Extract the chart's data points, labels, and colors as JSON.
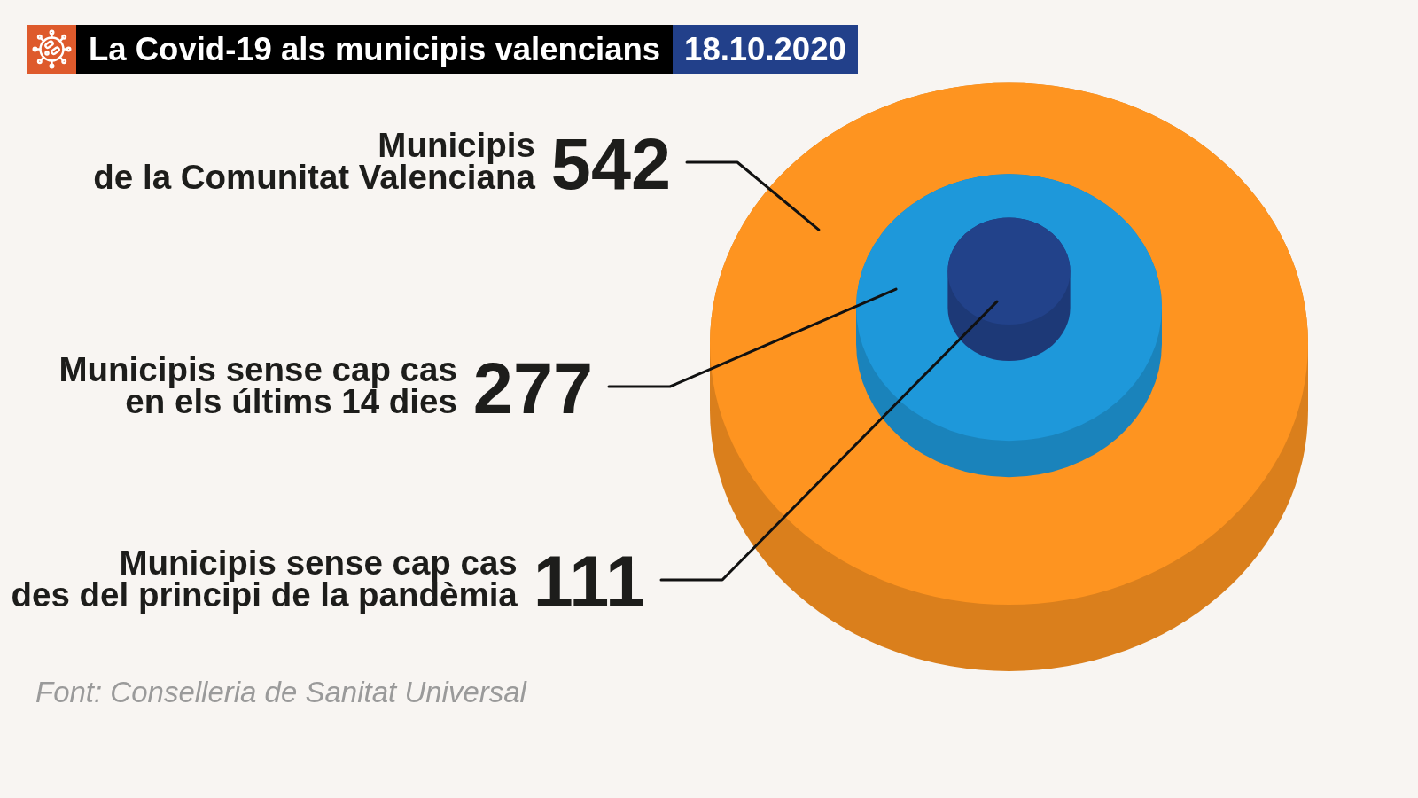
{
  "chart_data": {
    "type": "other",
    "title": "La Covid-19 als municipis valencians",
    "subtitle": "18.10.2020",
    "categories": [
      "Municipis\nde la Comunitat Valenciana",
      "Municipis sense cap cas\nen els últims 14 dies",
      "Municipis sense cap cas\ndes del principi de la pandèmia"
    ],
    "values": [
      542,
      277,
      111
    ],
    "colors": [
      "#fe9420",
      "#1e98da",
      "#22428a"
    ],
    "data_labels": true,
    "annotations": [
      "Font: Conselleria de Sanitat Universal"
    ]
  }
}
